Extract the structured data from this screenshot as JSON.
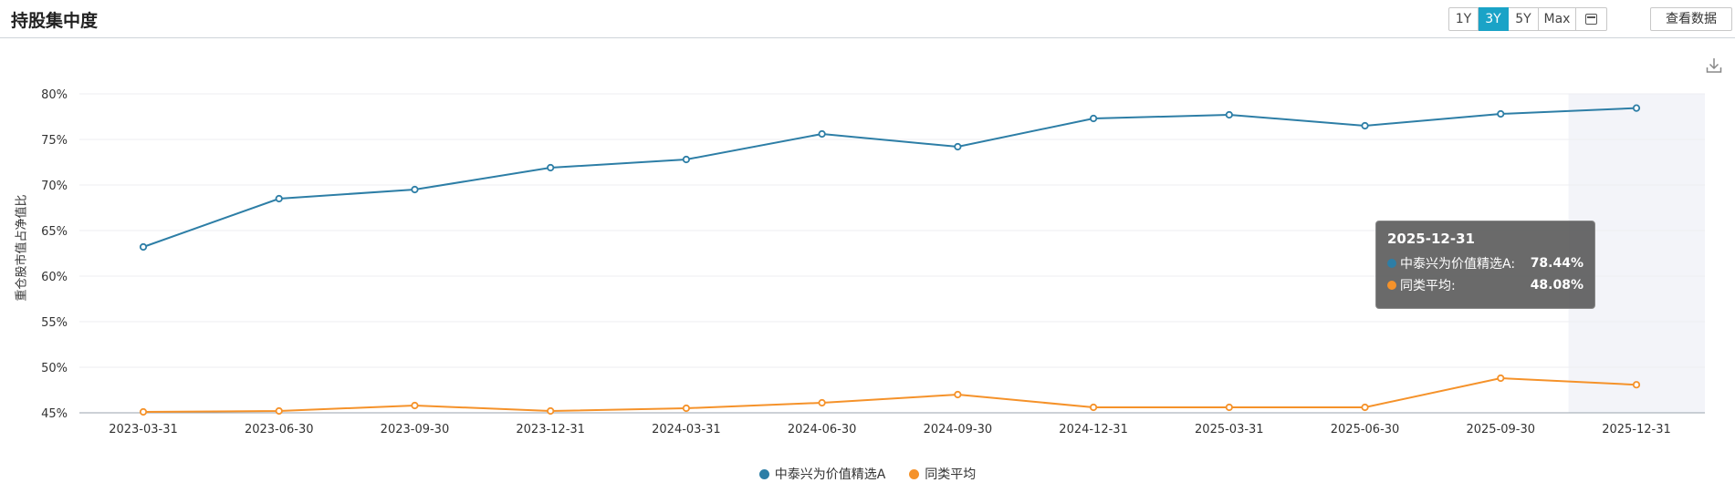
{
  "header": {
    "title": "持股集中度",
    "ranges": [
      "1Y",
      "3Y",
      "5Y",
      "Max"
    ],
    "active_range": "3Y",
    "calendar_icon": "calendar-icon",
    "view_data_label": "查看数据",
    "download_icon": "download-icon"
  },
  "colors": {
    "series1": "#2d7ea6",
    "series2": "#f5922a",
    "accent": "#1aa3c7",
    "highlight_band": "#f3f4f9"
  },
  "chart_data": {
    "type": "line",
    "x": [
      "2023-03-31",
      "2023-06-30",
      "2023-09-30",
      "2023-12-31",
      "2024-03-31",
      "2024-06-30",
      "2024-09-30",
      "2024-12-31",
      "2025-03-31",
      "2025-06-30",
      "2025-09-30",
      "2025-12-31"
    ],
    "series": [
      {
        "name": "中泰兴为价值精选A",
        "values": [
          63.2,
          68.5,
          69.5,
          71.9,
          72.8,
          75.6,
          74.2,
          77.3,
          77.7,
          76.5,
          77.8,
          78.44
        ]
      },
      {
        "name": "同类平均",
        "values": [
          45.1,
          45.2,
          45.8,
          45.2,
          45.5,
          46.1,
          47.0,
          45.6,
          45.6,
          45.6,
          48.8,
          48.08
        ]
      }
    ],
    "ylabel": "重仓股市值占净值比",
    "ylim": [
      45,
      80
    ],
    "yticks": [
      "80%",
      "75%",
      "70%",
      "65%",
      "60%",
      "55%",
      "50%",
      "45%"
    ],
    "grid": true,
    "legend": "bottom-center",
    "highlighted_index": 11
  },
  "tooltip": {
    "date": "2025-12-31",
    "rows": [
      {
        "name": "中泰兴为价值精选A:",
        "value": "78.44%"
      },
      {
        "name": "同类平均:",
        "value": "48.08%"
      }
    ]
  }
}
